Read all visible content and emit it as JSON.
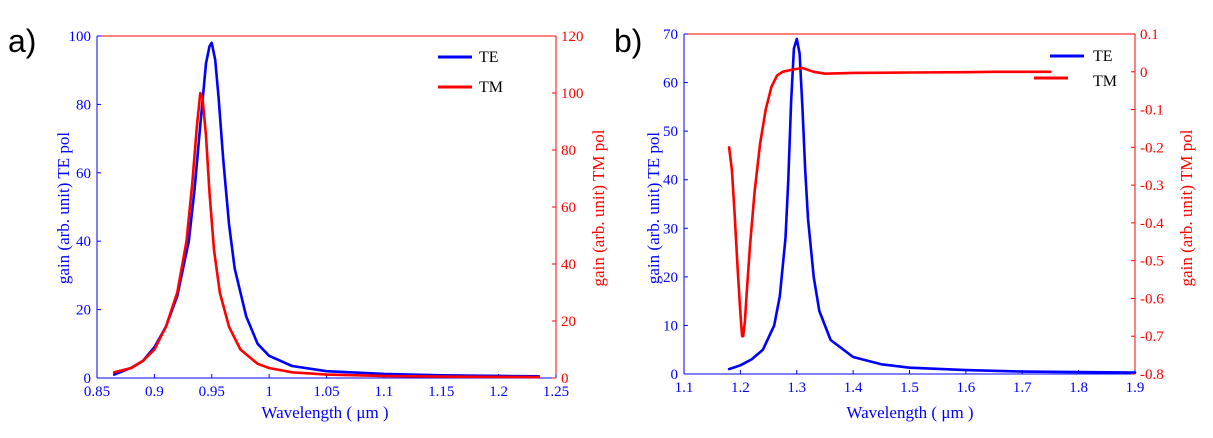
{
  "chart_data": [
    {
      "type": "line",
      "panel_label": "a)",
      "xlabel": "Wavelength ( μm )",
      "ylabel_left": "gain (arb. unit) TE pol",
      "ylabel_right": "gain (arb. unit) TM pol",
      "xlim": [
        0.85,
        1.25
      ],
      "ylim_left": [
        0,
        100
      ],
      "ylim_right": [
        0,
        120
      ],
      "xticks": [
        "0.85",
        "0.9",
        "0.95",
        "1",
        "1.05",
        "1.1",
        "1.15",
        "1.2",
        "1.25"
      ],
      "yticks_left": [
        "0",
        "20",
        "40",
        "60",
        "80",
        "100"
      ],
      "yticks_right": [
        "0",
        "20",
        "40",
        "60",
        "80",
        "100",
        "120"
      ],
      "legend": [
        "TE",
        "TM"
      ],
      "colors": {
        "TE": "#0000ff",
        "TM": "#ff0000"
      },
      "series": [
        {
          "name": "TE",
          "axis": "left",
          "x": [
            0.865,
            0.88,
            0.89,
            0.9,
            0.91,
            0.92,
            0.93,
            0.935,
            0.94,
            0.945,
            0.948,
            0.95,
            0.953,
            0.956,
            0.96,
            0.965,
            0.97,
            0.98,
            0.99,
            1.0,
            1.02,
            1.05,
            1.1,
            1.15,
            1.2,
            1.235
          ],
          "y": [
            1,
            3,
            5,
            9,
            15,
            24,
            40,
            55,
            74,
            92,
            97,
            98,
            93,
            82,
            64,
            45,
            32,
            18,
            10,
            6.5,
            3.5,
            2.0,
            1.2,
            0.8,
            0.6,
            0.5
          ]
        },
        {
          "name": "TM",
          "axis": "right",
          "x": [
            0.865,
            0.88,
            0.89,
            0.9,
            0.91,
            0.92,
            0.928,
            0.933,
            0.937,
            0.94,
            0.942,
            0.945,
            0.948,
            0.952,
            0.957,
            0.965,
            0.975,
            0.99,
            1.0,
            1.02,
            1.05,
            1.1,
            1.15,
            1.2,
            1.235
          ],
          "y": [
            2,
            3.5,
            6,
            10,
            18,
            30,
            48,
            68,
            88,
            100,
            98,
            85,
            65,
            45,
            30,
            18,
            10,
            5,
            3.5,
            2,
            1.2,
            0.7,
            0.5,
            0.4,
            0.3
          ]
        }
      ]
    },
    {
      "type": "line",
      "panel_label": "b)",
      "xlabel": "Wavelength ( μm )",
      "ylabel_left": "gain (arb. unit) TE pol",
      "ylabel_right": "gain (arb. unit) TM pol",
      "xlim": [
        1.1,
        1.9
      ],
      "ylim_left": [
        0,
        70
      ],
      "ylim_right": [
        -0.8,
        0.1
      ],
      "xticks": [
        "1.1",
        "1.2",
        "1.3",
        "1.4",
        "1.5",
        "1.6",
        "1.7",
        "1.8",
        "1.9"
      ],
      "yticks_left": [
        "0",
        "10",
        "20",
        "30",
        "40",
        "50",
        "60",
        "70"
      ],
      "yticks_right": [
        "-0.8",
        "-0.7",
        "-0.6",
        "-0.5",
        "-0.4",
        "-0.3",
        "-0.2",
        "-0.1",
        "0",
        "0.1"
      ],
      "legend": [
        "TE",
        "TM"
      ],
      "colors": {
        "TE": "#0000ff",
        "TM": "#ff0000"
      },
      "series": [
        {
          "name": "TE",
          "axis": "left",
          "x": [
            1.18,
            1.2,
            1.22,
            1.24,
            1.26,
            1.27,
            1.28,
            1.285,
            1.29,
            1.295,
            1.3,
            1.305,
            1.31,
            1.315,
            1.32,
            1.33,
            1.34,
            1.36,
            1.4,
            1.45,
            1.5,
            1.6,
            1.7,
            1.8,
            1.9
          ],
          "y": [
            1,
            1.8,
            3,
            5,
            10,
            16,
            28,
            40,
            56,
            67,
            69,
            66,
            55,
            42,
            32,
            20,
            13,
            7,
            3.5,
            2,
            1.3,
            0.8,
            0.5,
            0.4,
            0.3
          ]
        },
        {
          "name": "TM",
          "axis": "right",
          "x": [
            1.18,
            1.185,
            1.19,
            1.195,
            1.2,
            1.203,
            1.205,
            1.208,
            1.212,
            1.217,
            1.225,
            1.235,
            1.245,
            1.255,
            1.265,
            1.275,
            1.29,
            1.31,
            1.33,
            1.35,
            1.4,
            1.5,
            1.6,
            1.65,
            1.7,
            1.75
          ],
          "y": [
            -0.2,
            -0.26,
            -0.38,
            -0.52,
            -0.64,
            -0.7,
            -0.7,
            -0.66,
            -0.57,
            -0.46,
            -0.32,
            -0.19,
            -0.1,
            -0.04,
            -0.01,
            0.0,
            0.005,
            0.01,
            0.0,
            -0.005,
            -0.003,
            -0.002,
            -0.001,
            0.0,
            0.0,
            0.0
          ]
        }
      ]
    }
  ]
}
